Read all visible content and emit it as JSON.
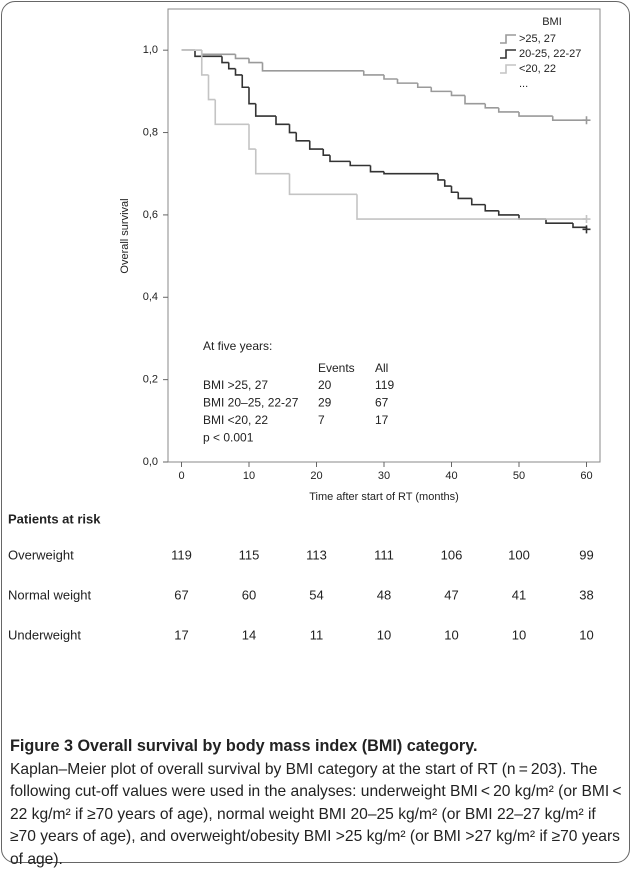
{
  "chart_data": {
    "type": "step",
    "ylabel": "Overall survival",
    "xlabel": "Time after start of RT (months)",
    "xlim": [
      -2,
      62
    ],
    "xticks": [
      0,
      10,
      20,
      30,
      40,
      50,
      60
    ],
    "ylim": [
      0,
      1.1
    ],
    "yticks": [
      {
        "value": 0,
        "label": "0,0"
      },
      {
        "value": 0.2,
        "label": "0,2"
      },
      {
        "value": 0.4,
        "label": "0,4"
      },
      {
        "value": 0.6,
        "label": "0,6"
      },
      {
        "value": 0.8,
        "label": "0,8"
      },
      {
        "value": 1,
        "label": "1,0"
      }
    ],
    "legend_title": "BMI",
    "legend_note": "...",
    "legend_position": "upper right",
    "series": [
      {
        "name": ">25, 27",
        "color": "#9a9a9a",
        "x": [
          0,
          3,
          8,
          10,
          12,
          27,
          30,
          32,
          35,
          37,
          40,
          42,
          45,
          47,
          50,
          55,
          60
        ],
        "values": [
          1.0,
          0.99,
          0.98,
          0.97,
          0.95,
          0.94,
          0.93,
          0.92,
          0.91,
          0.9,
          0.89,
          0.87,
          0.86,
          0.85,
          0.84,
          0.83,
          0.83
        ]
      },
      {
        "name": "20-25, 22-27",
        "color": "#333333",
        "x": [
          0,
          2,
          6,
          7,
          8,
          9,
          10,
          11,
          14,
          16,
          17,
          19,
          21,
          22,
          25,
          28,
          30,
          38,
          39,
          40,
          41,
          43,
          45,
          47,
          50,
          54,
          58,
          60
        ],
        "values": [
          1.0,
          0.985,
          0.97,
          0.955,
          0.94,
          0.91,
          0.87,
          0.84,
          0.82,
          0.8,
          0.78,
          0.76,
          0.745,
          0.73,
          0.72,
          0.705,
          0.7,
          0.685,
          0.67,
          0.655,
          0.64,
          0.625,
          0.61,
          0.6,
          0.59,
          0.58,
          0.57,
          0.565
        ]
      },
      {
        "name": "<20, 22",
        "color": "#c4c4c4",
        "x": [
          0,
          3,
          4,
          5,
          10,
          11,
          16,
          26,
          60
        ],
        "values": [
          1.0,
          0.94,
          0.88,
          0.82,
          0.76,
          0.7,
          0.65,
          0.59,
          0.59
        ]
      }
    ],
    "annotation": {
      "title": "At five years:",
      "header": [
        "Events",
        "All"
      ],
      "rows": [
        [
          "BMI >25, 27",
          20,
          119
        ],
        [
          "BMI 20–25, 22-27",
          29,
          67
        ],
        [
          "BMI <20, 22",
          7,
          17
        ]
      ],
      "note": "p < 0.001"
    },
    "risk_table": {
      "title": "Patients at risk",
      "rows": [
        {
          "label": "Overweight",
          "values": [
            119,
            115,
            113,
            111,
            106,
            100,
            99
          ]
        },
        {
          "label": "Normal weight",
          "values": [
            67,
            60,
            54,
            48,
            47,
            41,
            38
          ]
        },
        {
          "label": "Underweight",
          "values": [
            17,
            14,
            11,
            10,
            10,
            10,
            10
          ]
        }
      ]
    }
  },
  "caption": {
    "title": "Figure 3 Overall survival by body mass index (BMI) category.",
    "text": "Kaplan–Meier plot of overall survival by BMI category at the start of RT (n = 203). The following cut-off values were used in the analyses: underweight BMI < 20 kg/m² (or BMI < 22 kg/m² if ≥70 years of age), normal weight BMI 20–25 kg/m² (or BMI 22–27 kg/m² if ≥70 years of age), and overweight/obesity BMI >25 kg/m² (or BMI >27 kg/m² if ≥70 years of age)."
  }
}
